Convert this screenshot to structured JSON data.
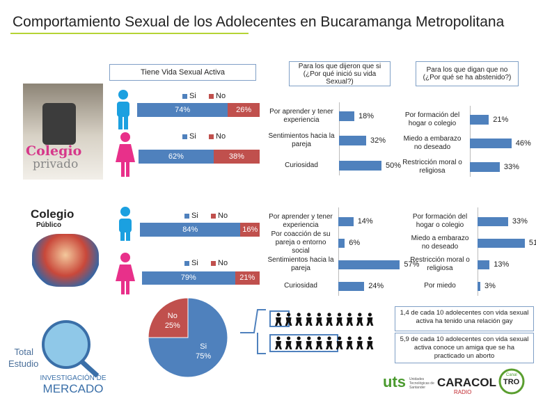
{
  "title": "Comportamiento Sexual de los Adolecentes en Bucaramanga Metropolitana",
  "header": "Tiene Vida  Sexual Activa",
  "questions": [
    "Para los que dijeron que si (¿Por qué inició su vida Sexual?)",
    "Para los que digan que no (¿Por qué se ha abstenido?)"
  ],
  "schools": [
    [
      "Colegio",
      "privado"
    ],
    [
      "Colegio",
      "Público"
    ]
  ],
  "total": [
    "Total",
    "Estudio"
  ],
  "brand": [
    "INVESTIGACIÓN DE",
    "MERCADO"
  ],
  "notes": [
    "1,4 de cada 10 adolecentes  con vida sexual activa ha tenido una relación gay",
    "5,9 de cada 10 adolecentes  con vida sexual activa conoce un amiga que se ha practicado un aborto"
  ],
  "sponsors": [
    "uts",
    "Unidades Tecnológicas de Santander",
    "CARACOL",
    "RADIO",
    "Canal",
    "TRO"
  ],
  "chart_data": [
    {
      "type": "stacked_bar",
      "series": [
        {
          "name": "Si",
          "color": "#4f81bd",
          "values": [
            74
          ],
          "value_labels": [
            "74%"
          ]
        },
        {
          "name": "No",
          "color": "#c0504d",
          "values": [
            26
          ],
          "value_labels": [
            "26%"
          ]
        }
      ]
    },
    {
      "type": "stacked_bar",
      "series": [
        {
          "name": "Si",
          "color": "#4f81bd",
          "values": [
            62
          ],
          "value_labels": [
            "62%"
          ]
        },
        {
          "name": "No",
          "color": "#c0504d",
          "values": [
            38
          ],
          "value_labels": [
            "38%"
          ]
        }
      ]
    },
    {
      "type": "stacked_bar",
      "series": [
        {
          "name": "Si",
          "color": "#4f81bd",
          "values": [
            84
          ],
          "value_labels": [
            "84%"
          ]
        },
        {
          "name": "No",
          "color": "#c0504d",
          "values": [
            16
          ],
          "value_labels": [
            "16%"
          ]
        }
      ]
    },
    {
      "type": "stacked_bar",
      "series": [
        {
          "name": "Si",
          "color": "#4f81bd",
          "values": [
            79
          ],
          "value_labels": [
            "79%"
          ]
        },
        {
          "name": "No",
          "color": "#c0504d",
          "values": [
            21
          ],
          "value_labels": [
            "21%"
          ]
        }
      ]
    },
    {
      "type": "hbar",
      "color": "#4f81bd",
      "categories": [
        "Por aprender y tener experiencia",
        "Sentimientos hacia la pareja",
        "Curiosidad"
      ],
      "values": [
        18,
        32,
        50
      ],
      "value_labels": [
        "18%",
        "32%",
        "50%"
      ]
    },
    {
      "type": "hbar",
      "color": "#4f81bd",
      "categories": [
        "Por formación del hogar o colegio",
        "Miedo a embarazo no deseado",
        "Restricción moral o religiosa"
      ],
      "values": [
        21,
        46,
        33
      ],
      "value_labels": [
        "21%",
        "46%",
        "33%"
      ]
    },
    {
      "type": "hbar",
      "color": "#4f81bd",
      "categories": [
        "Por aprender y tener experiencia",
        "Por coacción de su pareja o entorno social",
        "Sentimientos hacia la pareja",
        "Curiosidad"
      ],
      "values": [
        14,
        6,
        57,
        24
      ],
      "value_labels": [
        "14%",
        "6%",
        "57%",
        "24%"
      ]
    },
    {
      "type": "hbar",
      "color": "#4f81bd",
      "categories": [
        "Por formación del hogar o colegio",
        "Miedo a embarazo no deseado",
        "Restricción moral o religiosa",
        "Por miedo"
      ],
      "values": [
        33,
        51,
        13,
        3
      ],
      "value_labels": [
        "33%",
        "51%",
        "13%",
        "3%"
      ]
    },
    {
      "type": "pie",
      "categories": [
        "No",
        "Si"
      ],
      "values": [
        25,
        75
      ],
      "value_labels": [
        "25%",
        "75%"
      ],
      "colors": [
        "#c0504d",
        "#4f81bd"
      ]
    }
  ]
}
